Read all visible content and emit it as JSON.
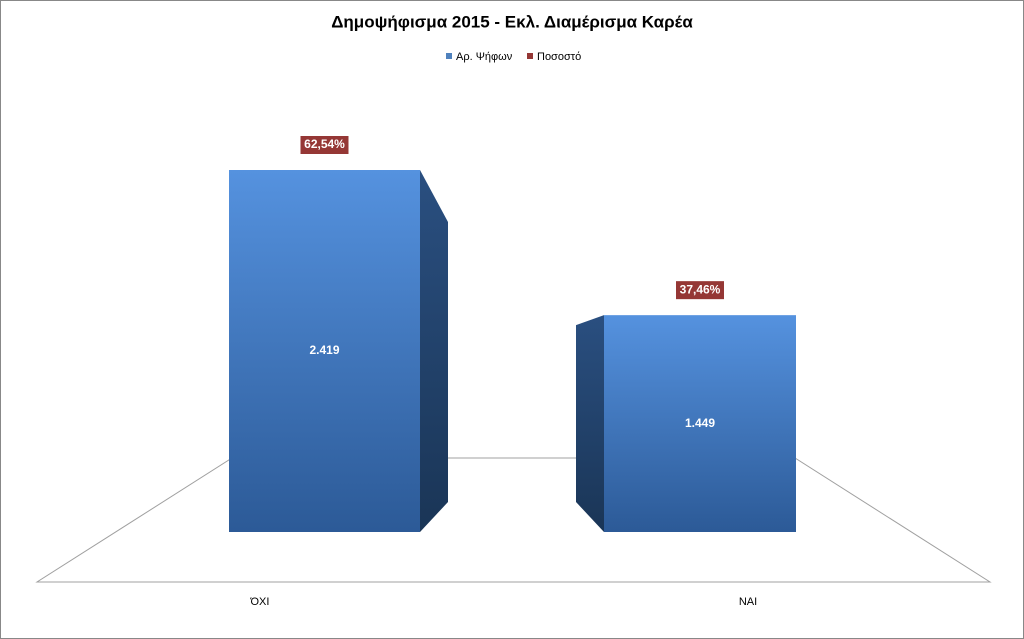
{
  "chart_data": {
    "type": "bar3d",
    "title": "Δημοψήφισμα 2015 - Εκλ. Διαμέρισμα Καρέα",
    "categories": [
      "ΌΧΙ",
      "ΝΑΙ"
    ],
    "series": [
      {
        "name": "Αρ. Ψήφων",
        "color": "#4f81bd",
        "values": [
          2419,
          1449
        ],
        "value_labels": [
          "2.419",
          "1.449"
        ]
      },
      {
        "name": "Ποσοστό",
        "color": "#953735",
        "values": [
          62.54,
          37.46
        ],
        "value_labels": [
          "62,54%",
          "37,46%"
        ]
      }
    ]
  }
}
